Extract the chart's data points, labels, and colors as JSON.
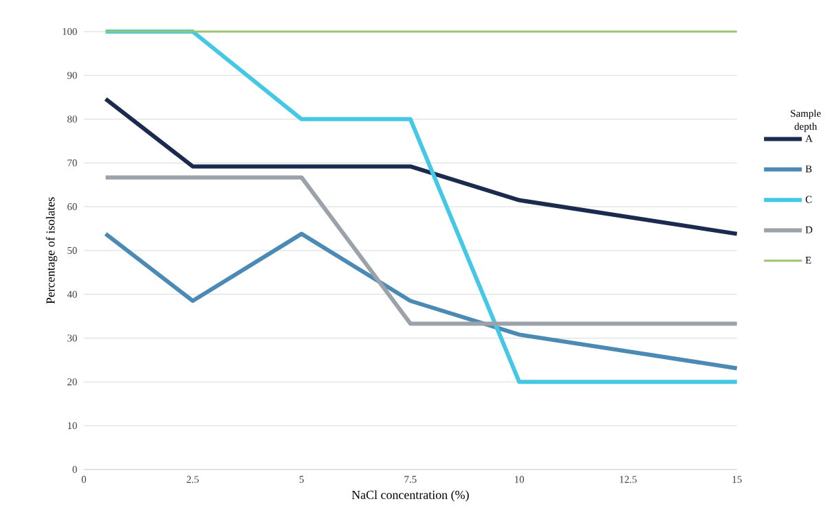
{
  "chart_data": {
    "type": "line",
    "xlabel": "NaCl concentration (%)",
    "ylabel": "Percentage of isolates",
    "legend_title": "Sample depth",
    "x": [
      0.5,
      2.5,
      5,
      7.5,
      10,
      15
    ],
    "series": [
      {
        "name": "A",
        "color": "#1b2b4f",
        "values": [
          84.6,
          69.2,
          69.2,
          69.2,
          61.5,
          53.8
        ]
      },
      {
        "name": "B",
        "color": "#4a8ab5",
        "values": [
          53.8,
          38.5,
          53.8,
          38.5,
          30.8,
          23.1
        ]
      },
      {
        "name": "C",
        "color": "#45c8e6",
        "values": [
          100,
          100,
          80,
          80,
          20,
          20
        ]
      },
      {
        "name": "D",
        "color": "#9ba2aa",
        "values": [
          66.7,
          66.7,
          66.7,
          33.3,
          33.3,
          33.3
        ]
      },
      {
        "name": "E",
        "color": "#9bc46e",
        "values": [
          100,
          100,
          100,
          100,
          100,
          100
        ]
      }
    ],
    "xlim": [
      0,
      15
    ],
    "xticks": [
      0,
      2.5,
      5,
      7.5,
      10,
      12.5,
      15
    ],
    "ylim": [
      0,
      100
    ],
    "yticks": [
      0,
      10,
      20,
      30,
      40,
      50,
      60,
      70,
      80,
      90,
      100
    ],
    "grid": "y",
    "legend": "right",
    "marker": "none",
    "line_style": "solid"
  }
}
